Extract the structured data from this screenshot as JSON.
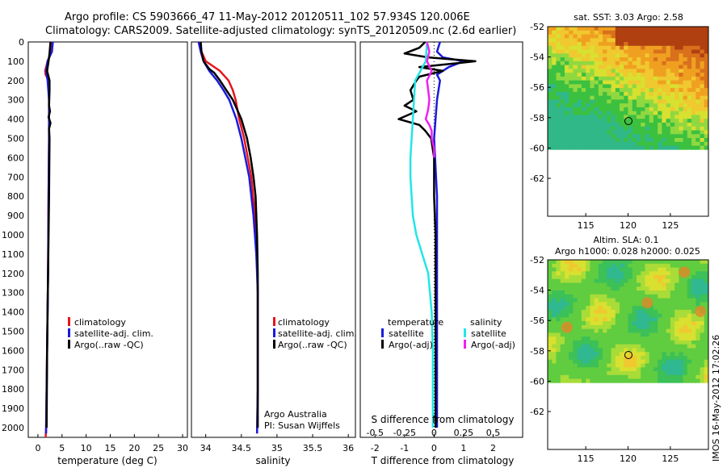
{
  "header": {
    "line1": "Argo profile: CS 5903666_47 11-May-2012 20120511_102 57.934S 120.006E",
    "line2": "Climatology: CARS2009. Satellite-adjusted climatology: synTS_20120509.nc (2.6d earlier)"
  },
  "depth_ticks": [
    "0",
    "100",
    "200",
    "300",
    "400",
    "500",
    "600",
    "700",
    "800",
    "900",
    "1000",
    "1100",
    "1200",
    "1300",
    "1400",
    "1500",
    "1600",
    "1700",
    "1800",
    "1900",
    "2000"
  ],
  "colors": {
    "climatology": "#e8141c",
    "satellite": "#1a1adc",
    "argo": "#000000",
    "sat_salinity": "#22e6e6",
    "argo_salinity": "#f020f0"
  },
  "chart_data": [
    {
      "type": "line",
      "id": "temperature",
      "xlabel": "temperature (deg C)",
      "ylabel": "depth",
      "xlim": [
        -2,
        31
      ],
      "ylim": [
        0,
        2050
      ],
      "xticks": [
        "0",
        "5",
        "10",
        "15",
        "20",
        "25",
        "30"
      ],
      "legend": [
        "climatology",
        "satellite-adj. clim.",
        "Argo(..raw -QC)"
      ],
      "series": [
        {
          "name": "climatology",
          "depth": [
            0,
            50,
            100,
            150,
            170,
            200,
            300,
            500,
            800,
            1200,
            1600,
            2000,
            2050
          ],
          "values": [
            2.9,
            2.8,
            2.0,
            1.5,
            1.6,
            2.2,
            2.3,
            2.3,
            2.2,
            2.1,
            1.9,
            1.7,
            1.6
          ]
        },
        {
          "name": "satellite-adj. clim.",
          "depth": [
            0,
            50,
            100,
            150,
            200,
            300,
            500,
            800,
            1200,
            1600,
            2000,
            2030
          ],
          "values": [
            3.1,
            2.9,
            2.0,
            1.7,
            2.0,
            2.3,
            2.3,
            2.2,
            2.1,
            1.9,
            1.7,
            1.7
          ]
        },
        {
          "name": "Argo(..raw -QC)",
          "depth": [
            0,
            30,
            60,
            100,
            150,
            180,
            200,
            250,
            330,
            360,
            390,
            420,
            450,
            500,
            800,
            1200,
            1600,
            2000
          ],
          "values": [
            2.6,
            2.5,
            2.4,
            2.2,
            1.9,
            2.2,
            2.4,
            2.4,
            2.3,
            2.5,
            2.2,
            2.6,
            2.3,
            2.4,
            2.3,
            2.1,
            1.9,
            1.8
          ]
        }
      ]
    },
    {
      "type": "line",
      "id": "salinity",
      "xlabel": "salinity",
      "ylabel": "depth",
      "xlim": [
        33.8,
        36.1
      ],
      "ylim": [
        0,
        2050
      ],
      "xticks": [
        "34",
        "34.5",
        "35",
        "35.5",
        "36"
      ],
      "legend": [
        "climatology",
        "satellite-adj. clim.",
        "Argo(..raw -QC)"
      ],
      "credit": [
        "Argo Australia",
        "PI: Susan Wijffels"
      ],
      "series": [
        {
          "name": "climatology",
          "depth": [
            0,
            50,
            100,
            150,
            200,
            250,
            300,
            400,
            500,
            700,
            900,
            1100,
            1300,
            1500,
            1800,
            2030
          ],
          "values": [
            33.92,
            33.94,
            34.0,
            34.2,
            34.32,
            34.38,
            34.42,
            34.47,
            34.54,
            34.64,
            34.69,
            34.72,
            34.73,
            34.73,
            34.73,
            34.72
          ]
        },
        {
          "name": "satellite-adj. clim.",
          "depth": [
            0,
            50,
            100,
            150,
            200,
            250,
            300,
            400,
            500,
            700,
            900,
            1100,
            1300,
            1500,
            1800,
            2030
          ],
          "values": [
            33.9,
            33.93,
            33.97,
            34.05,
            34.16,
            34.25,
            34.33,
            34.43,
            34.5,
            34.61,
            34.67,
            34.71,
            34.73,
            34.73,
            34.73,
            34.72
          ]
        },
        {
          "name": "Argo(..raw -QC)",
          "depth": [
            0,
            50,
            100,
            140,
            160,
            200,
            250,
            300,
            400,
            500,
            600,
            700,
            800,
            900,
            1000,
            1200,
            1500,
            1800,
            2000
          ],
          "values": [
            33.93,
            33.94,
            33.97,
            34.05,
            34.12,
            34.2,
            34.29,
            34.38,
            34.5,
            34.58,
            34.63,
            34.67,
            34.7,
            34.71,
            34.72,
            34.73,
            34.73,
            34.73,
            34.73
          ]
        }
      ]
    },
    {
      "type": "line",
      "id": "differences",
      "xlabel": "T difference from climatology",
      "xlabel_top": "S difference from climatology",
      "ylabel": "depth",
      "xlim": [
        -2.5,
        3.0
      ],
      "ylim": [
        0,
        2050
      ],
      "xticks_T": [
        "-2",
        "-1",
        "0",
        "1",
        "2"
      ],
      "xticks_S": [
        "-0.5",
        "-0.25",
        "0",
        "0.25",
        "0.5"
      ],
      "legend_groups": [
        {
          "title": "temperature",
          "entries": [
            "satellite",
            "Argo(-adj)"
          ]
        },
        {
          "title": "salinity",
          "entries": [
            "satellite",
            "Argo(-adj)"
          ]
        }
      ],
      "series": [
        {
          "name": "temperature satellite",
          "depth": [
            0,
            50,
            80,
            100,
            130,
            170,
            200,
            300,
            500,
            800,
            1200,
            1600,
            2000
          ],
          "values": [
            0.2,
            0.1,
            0.3,
            1.0,
            0.5,
            0.1,
            0.2,
            0.1,
            0.0,
            0.1,
            0.1,
            0.1,
            0.1
          ]
        },
        {
          "name": "temperature Argo(-adj)",
          "depth": [
            0,
            30,
            60,
            80,
            100,
            110,
            130,
            150,
            180,
            200,
            250,
            300,
            330,
            360,
            400,
            430,
            460,
            500,
            600,
            800,
            1000,
            1200,
            1600,
            2000
          ],
          "values": [
            -0.3,
            -0.5,
            -1.0,
            -0.2,
            1.4,
            0.8,
            -0.5,
            0.3,
            -0.5,
            -0.6,
            -0.8,
            -0.7,
            -1.0,
            -0.6,
            -1.2,
            -0.5,
            -0.3,
            -0.1,
            0.0,
            0.0,
            0.05,
            0.05,
            0.05,
            0.05
          ]
        },
        {
          "name": "salinity satellite",
          "depth": [
            0,
            100,
            200,
            300,
            400,
            500,
            600,
            700,
            800,
            900,
            1000,
            1100,
            1200,
            1400,
            1600,
            1800,
            2000
          ],
          "values": [
            -0.06,
            -0.07,
            -0.16,
            -0.17,
            -0.18,
            -0.19,
            -0.2,
            -0.2,
            -0.19,
            -0.18,
            -0.15,
            -0.1,
            -0.05,
            -0.02,
            -0.01,
            -0.01,
            -0.01
          ]
        },
        {
          "name": "salinity Argo(-adj)",
          "depth": [
            0,
            50,
            100,
            150,
            200,
            250,
            300,
            350,
            400,
            430,
            460,
            500,
            550,
            600
          ],
          "values": [
            -0.06,
            -0.04,
            -0.06,
            -0.02,
            -0.06,
            -0.05,
            -0.04,
            -0.05,
            -0.07,
            -0.04,
            -0.02,
            -0.02,
            0.0,
            0.0
          ]
        }
      ]
    },
    {
      "type": "heatmap",
      "id": "sst_map",
      "title": "sat. SST: 3.03 Argo: 2.58",
      "xticks": [
        "115",
        "120",
        "125"
      ],
      "yticks": [
        "-52",
        "-54",
        "-56",
        "-58",
        "-60",
        "-62"
      ],
      "xlim": [
        110.5,
        129.5
      ],
      "ylim": [
        -64.5,
        -52
      ],
      "data_ylim": [
        -60.1,
        -52
      ],
      "marker": {
        "lon": 120.0,
        "lat": -57.93
      }
    },
    {
      "type": "heatmap",
      "id": "sla_map",
      "title_lines": [
        "Altim. SLA: 0.1",
        "Argo h1000: 0.028 h2000: 0.025"
      ],
      "xticks": [
        "115",
        "120",
        "125"
      ],
      "yticks": [
        "-52",
        "-54",
        "-56",
        "-58",
        "-60",
        "-62"
      ],
      "xlim": [
        110.5,
        129.5
      ],
      "ylim": [
        -64.5,
        -52
      ],
      "data_ylim": [
        -60.1,
        -52
      ],
      "marker": {
        "lon": 120.0,
        "lat": -57.93
      }
    }
  ],
  "side_stamp": "IMOS 16-May-2012 17:02:26"
}
